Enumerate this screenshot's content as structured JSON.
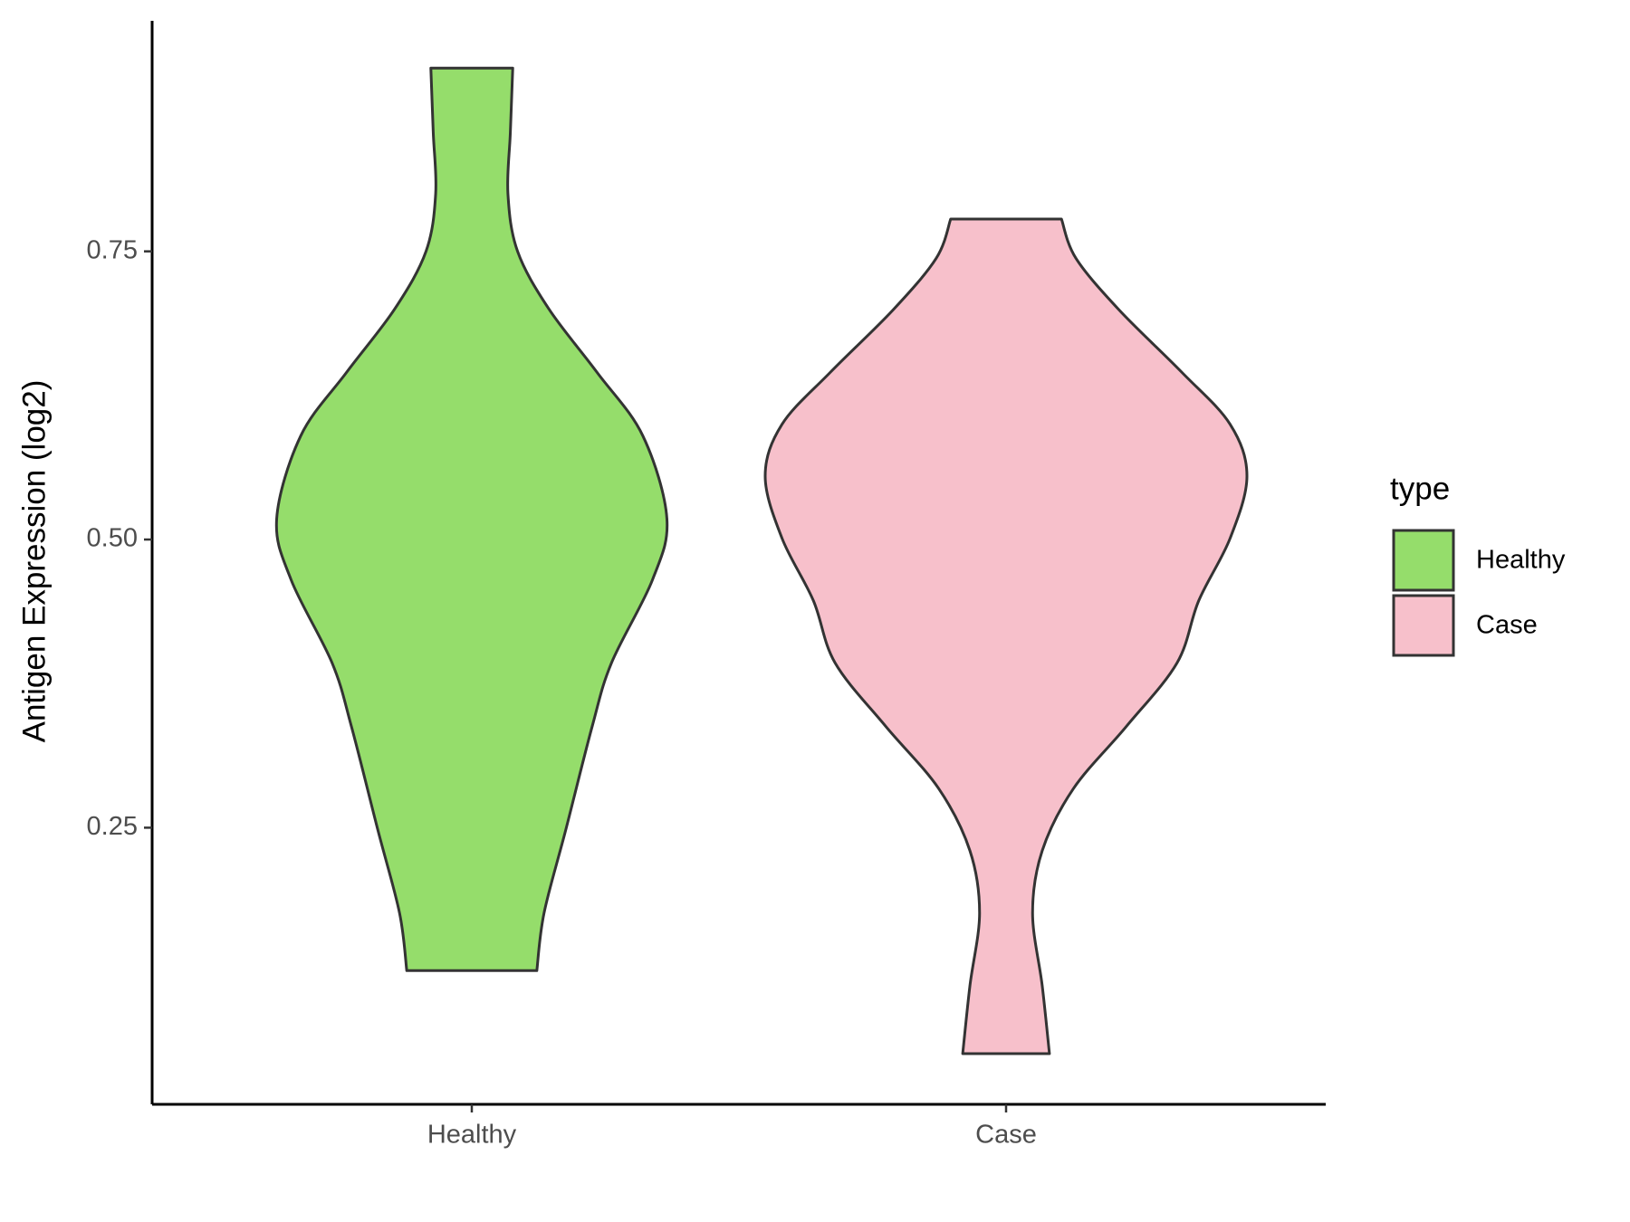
{
  "chart_data": {
    "type": "violin",
    "y_label": "Antigen Expression (log2)",
    "categories": [
      "Healthy",
      "Case"
    ],
    "legend_title": "type",
    "legend_position": "right",
    "ylim": [
      0.01,
      0.95
    ],
    "yticks": [
      {
        "value": 0.25,
        "label": "0.25"
      },
      {
        "value": 0.5,
        "label": "0.50"
      },
      {
        "value": 0.75,
        "label": "0.75"
      }
    ],
    "series": [
      {
        "name": "Healthy",
        "color": "#95dd6b",
        "y": [
          0.909,
          0.853,
          0.8,
          0.75,
          0.7,
          0.645,
          0.59,
          0.518,
          0.465,
          0.393,
          0.338,
          0.248,
          0.176,
          0.126
        ],
        "density": [
          0.17,
          0.16,
          0.15,
          0.19,
          0.32,
          0.52,
          0.71,
          0.81,
          0.75,
          0.58,
          0.5,
          0.39,
          0.3,
          0.27
        ]
      },
      {
        "name": "Case",
        "color": "#f7c0cb",
        "y": [
          0.778,
          0.744,
          0.699,
          0.645,
          0.6,
          0.555,
          0.501,
          0.447,
          0.393,
          0.338,
          0.284,
          0.23,
          0.176,
          0.113,
          0.054
        ],
        "density": [
          0.23,
          0.29,
          0.47,
          0.73,
          0.93,
          1.0,
          0.93,
          0.8,
          0.71,
          0.5,
          0.28,
          0.15,
          0.11,
          0.15,
          0.18
        ]
      }
    ]
  }
}
